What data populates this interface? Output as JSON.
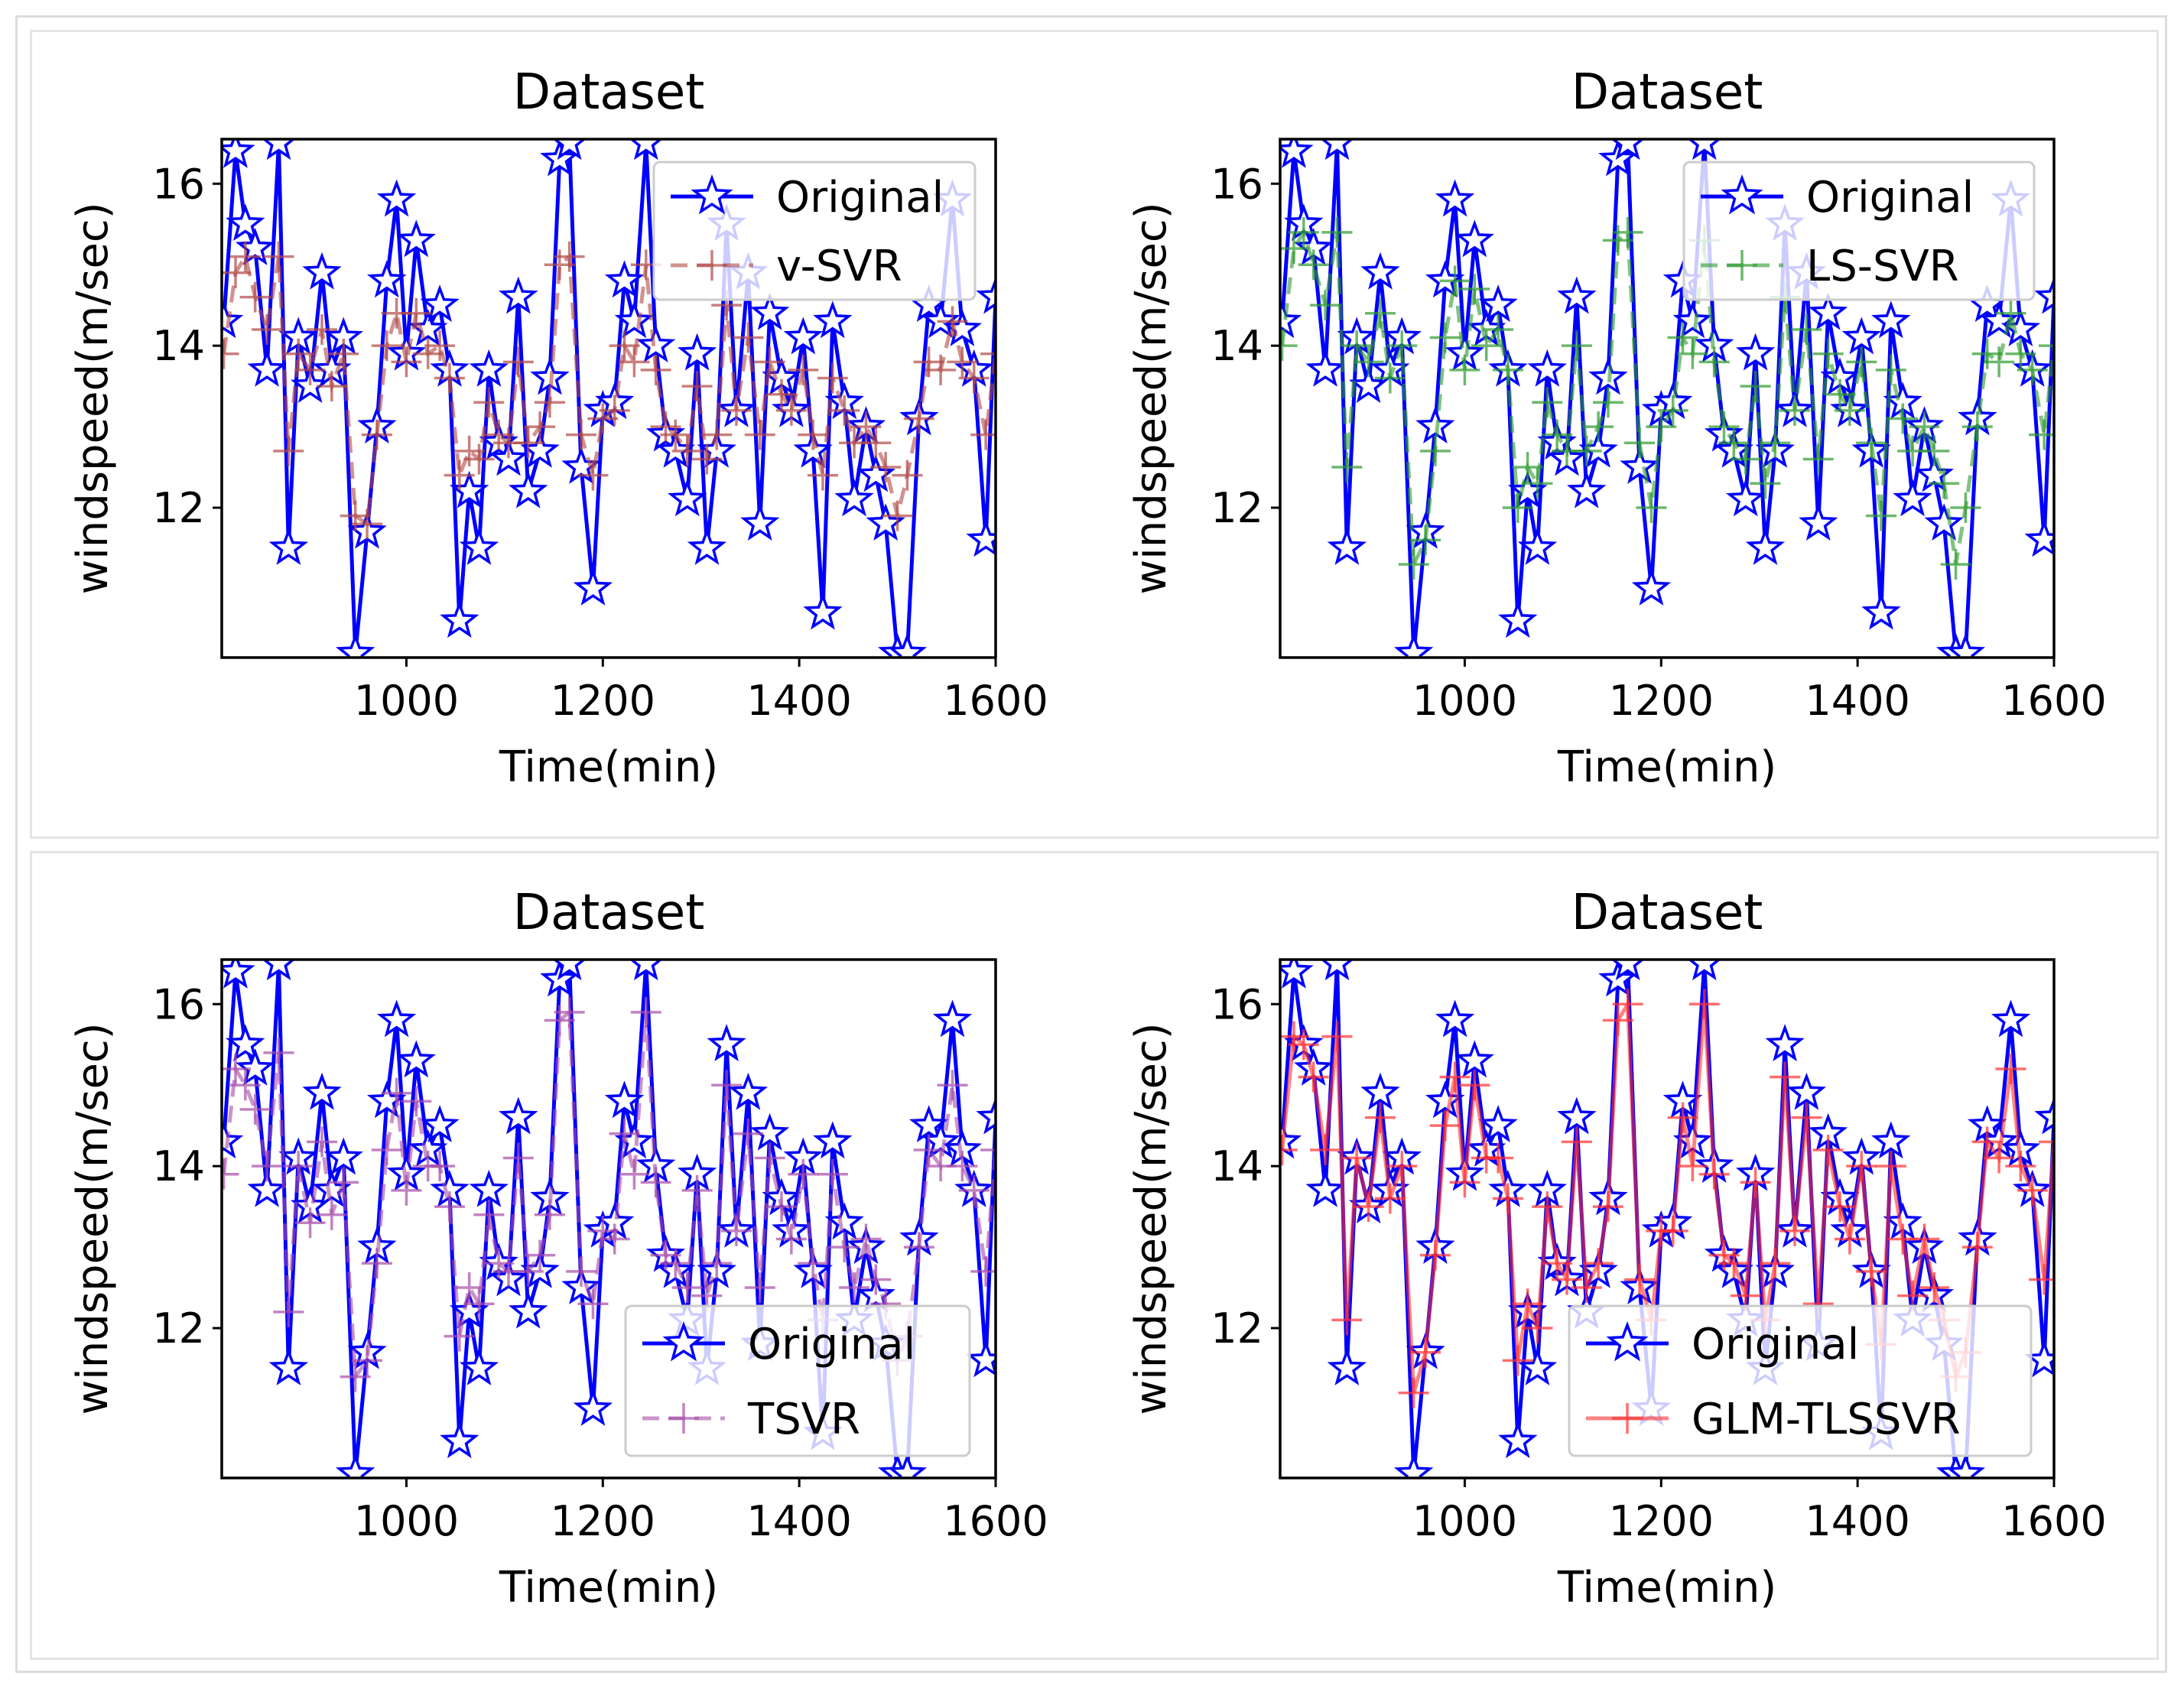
{
  "panels": [
    "top-row",
    "bottom-row"
  ],
  "chart_data": [
    {
      "type": "line",
      "title": "Dataset",
      "xlabel": "Time(min)",
      "ylabel": "windspeed(m/sec)",
      "xlim": [
        812,
        1600
      ],
      "ylim": [
        10.15,
        16.55
      ],
      "xticks": [
        "1000",
        "1200",
        "1400",
        "1600"
      ],
      "yticks": [
        "12",
        "14",
        "16"
      ],
      "legend_position": "top-right",
      "series": [
        {
          "name": "Original",
          "color": "#0000ff",
          "marker": "star",
          "style": "solid"
        },
        {
          "name": "v-SVR",
          "color": "#b04a46",
          "marker": "plus",
          "style": "dashed"
        }
      ]
    },
    {
      "type": "line",
      "title": "Dataset",
      "xlabel": "Time(min)",
      "ylabel": "windspeed(m/sec)",
      "xlim": [
        812,
        1600
      ],
      "ylim": [
        10.15,
        16.55
      ],
      "xticks": [
        "1000",
        "1200",
        "1400",
        "1600"
      ],
      "yticks": [
        "12",
        "14",
        "16"
      ],
      "legend_position": "top-right",
      "series": [
        {
          "name": "Original",
          "color": "#0000ff",
          "marker": "star",
          "style": "solid"
        },
        {
          "name": "LS-SVR",
          "color": "#2e9a2e",
          "marker": "plus",
          "style": "dashed"
        }
      ]
    },
    {
      "type": "line",
      "title": "Dataset",
      "xlabel": "Time(min)",
      "ylabel": "windspeed(m/sec)",
      "xlim": [
        812,
        1600
      ],
      "ylim": [
        10.15,
        16.55
      ],
      "xticks": [
        "1000",
        "1200",
        "1400",
        "1600"
      ],
      "yticks": [
        "12",
        "14",
        "16"
      ],
      "legend_position": "bottom-right",
      "series": [
        {
          "name": "Original",
          "color": "#0000ff",
          "marker": "star",
          "style": "solid"
        },
        {
          "name": "TSVR",
          "color": "#a64da6",
          "marker": "plus",
          "style": "dashed"
        }
      ]
    },
    {
      "type": "line",
      "title": "Dataset",
      "xlabel": "Time(min)",
      "ylabel": "windspeed(m/sec)",
      "xlim": [
        812,
        1600
      ],
      "ylim": [
        10.15,
        16.55
      ],
      "xticks": [
        "1000",
        "1200",
        "1400",
        "1600"
      ],
      "yticks": [
        "12",
        "14",
        "16"
      ],
      "legend_position": "bottom-right",
      "series": [
        {
          "name": "Original",
          "color": "#0000ff",
          "marker": "star",
          "style": "solid"
        },
        {
          "name": "GLM-TLSSVR",
          "color": "#ff3030",
          "marker": "plus",
          "style": "solid"
        }
      ]
    }
  ],
  "original": {
    "x": [
      814,
      826,
      836,
      846,
      858,
      870,
      880,
      890,
      902,
      914,
      924,
      936,
      948,
      960,
      970,
      980,
      990,
      1000,
      1010,
      1022,
      1034,
      1044,
      1054,
      1064,
      1074,
      1084,
      1094,
      1104,
      1114,
      1124,
      1136,
      1146,
      1156,
      1166,
      1178,
      1190,
      1200,
      1212,
      1222,
      1232,
      1244,
      1254,
      1264,
      1274,
      1286,
      1296,
      1306,
      1316,
      1326,
      1336,
      1348,
      1360,
      1370,
      1382,
      1392,
      1404,
      1414,
      1424,
      1434,
      1446,
      1456,
      1468,
      1478,
      1488,
      1500,
      1510,
      1522,
      1532,
      1544,
      1556,
      1566,
      1578,
      1590,
      1600
    ],
    "y": [
      14.3,
      16.4,
      15.5,
      15.2,
      13.7,
      16.5,
      11.5,
      14.1,
      13.5,
      14.9,
      13.7,
      14.1,
      10.2,
      11.7,
      13.0,
      14.8,
      15.8,
      13.9,
      15.3,
      14.2,
      14.5,
      13.7,
      10.6,
      12.2,
      11.5,
      13.7,
      12.8,
      12.6,
      14.6,
      12.2,
      12.7,
      13.6,
      16.3,
      16.5,
      12.5,
      11.0,
      13.2,
      13.3,
      14.8,
      14.3,
      16.5,
      14.0,
      12.9,
      12.7,
      12.1,
      13.9,
      11.5,
      12.7,
      15.5,
      13.2,
      14.9,
      11.8,
      14.4,
      13.6,
      13.2,
      14.1,
      12.7,
      10.7,
      14.3,
      13.3,
      12.1,
      13.0,
      12.4,
      11.8,
      10.2,
      10.2,
      13.1,
      14.5,
      14.3,
      15.8,
      14.2,
      13.7,
      11.6,
      14.6
    ]
  },
  "v_svr_y": [
    13.9,
    14.9,
    15.1,
    14.6,
    14.2,
    15.1,
    12.7,
    13.9,
    13.7,
    14.2,
    13.5,
    13.9,
    11.9,
    11.8,
    12.9,
    14.0,
    14.4,
    13.8,
    14.4,
    13.9,
    14.0,
    13.6,
    12.4,
    12.7,
    12.6,
    13.3,
    12.9,
    12.8,
    13.8,
    12.8,
    13.0,
    13.3,
    15.0,
    15.1,
    12.9,
    12.4,
    13.1,
    13.2,
    14.0,
    13.8,
    15.0,
    13.7,
    13.0,
    12.9,
    12.7,
    13.5,
    12.6,
    12.9,
    14.5,
    13.2,
    14.1,
    12.9,
    13.8,
    13.4,
    13.2,
    13.7,
    12.9,
    12.4,
    13.6,
    13.2,
    12.8,
    13.0,
    12.8,
    12.5,
    11.9,
    12.4,
    13.1,
    13.8,
    13.7,
    14.3,
    13.8,
    13.6,
    12.9,
    13.9
  ],
  "ls_svr_y": [
    14.0,
    15.2,
    15.4,
    15.0,
    14.5,
    15.4,
    12.5,
    14.0,
    13.8,
    14.4,
    13.6,
    14.0,
    11.3,
    11.6,
    12.7,
    14.1,
    14.8,
    13.7,
    14.7,
    14.0,
    14.2,
    13.7,
    12.0,
    12.5,
    12.3,
    13.3,
    12.9,
    12.7,
    14.0,
    12.7,
    13.0,
    13.3,
    15.3,
    15.4,
    12.8,
    12.0,
    13.0,
    13.2,
    14.1,
    13.9,
    15.3,
    13.8,
    13.0,
    12.8,
    12.6,
    13.5,
    12.3,
    12.8,
    14.6,
    13.2,
    14.2,
    12.6,
    13.9,
    13.4,
    13.2,
    13.8,
    12.8,
    11.9,
    13.7,
    13.1,
    12.7,
    13.0,
    12.7,
    12.3,
    11.3,
    12.0,
    13.0,
    13.9,
    13.8,
    14.4,
    13.9,
    13.7,
    12.9,
    14.0
  ],
  "tsvr_y": [
    13.9,
    15.2,
    15.0,
    14.7,
    14.0,
    15.4,
    12.2,
    14.0,
    13.3,
    14.3,
    13.4,
    13.8,
    11.4,
    11.6,
    12.8,
    14.2,
    14.9,
    13.7,
    14.8,
    14.0,
    14.0,
    13.5,
    11.9,
    12.5,
    12.3,
    13.4,
    12.8,
    12.7,
    14.1,
    12.7,
    12.9,
    13.4,
    15.8,
    15.9,
    12.7,
    12.3,
    13.2,
    13.1,
    14.4,
    13.9,
    15.9,
    13.8,
    12.9,
    12.8,
    12.5,
    13.7,
    12.4,
    12.8,
    15.0,
    13.2,
    14.4,
    12.5,
    14.1,
    13.5,
    13.1,
    13.9,
    12.8,
    12.1,
    13.9,
    13.0,
    12.5,
    13.1,
    12.6,
    12.3,
    11.6,
    11.9,
    13.0,
    14.2,
    14.0,
    15.0,
    14.0,
    13.7,
    12.7,
    14.2
  ],
  "glm_y": [
    14.2,
    15.6,
    15.5,
    15.1,
    14.2,
    15.6,
    12.1,
    14.1,
    13.5,
    14.6,
    13.6,
    14.0,
    11.2,
    11.7,
    12.9,
    14.5,
    15.1,
    13.8,
    15.0,
    14.1,
    14.1,
    13.6,
    11.6,
    12.3,
    12.0,
    13.5,
    12.8,
    12.6,
    14.3,
    12.5,
    12.8,
    13.5,
    15.8,
    16.0,
    12.6,
    12.1,
    13.2,
    13.2,
    14.6,
    14.0,
    16.0,
    13.9,
    12.9,
    12.8,
    12.4,
    13.8,
    12.1,
    12.8,
    15.1,
    13.2,
    14.6,
    12.3,
    14.2,
    13.5,
    13.1,
    14.0,
    12.7,
    11.8,
    14.0,
    13.1,
    12.4,
    13.1,
    12.5,
    12.1,
    11.4,
    11.7,
    13.0,
    14.3,
    14.1,
    15.2,
    14.0,
    13.7,
    12.6,
    14.3
  ]
}
